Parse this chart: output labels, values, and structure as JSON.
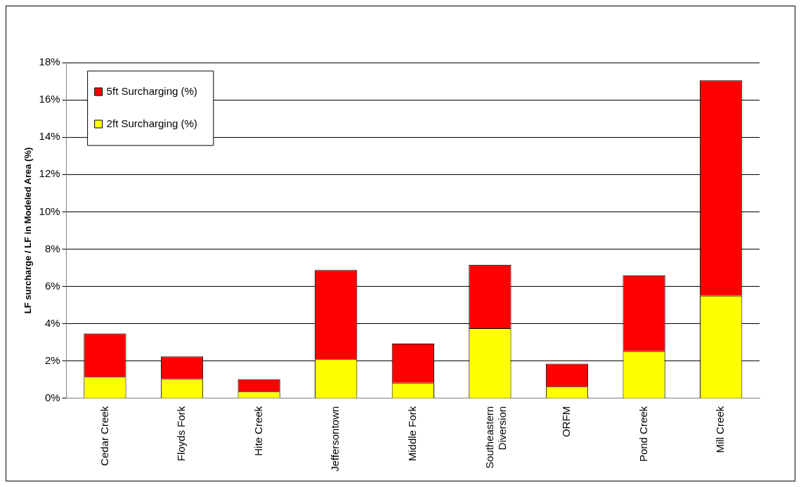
{
  "chart_data": {
    "type": "bar",
    "stacked": true,
    "ylabel": "LF surcharge / LF in Modeled Area (%)",
    "categories": [
      "Cedar Creek",
      "Floyds Fork",
      "Hite Creek",
      "Jeffersontown",
      "Middle Fork",
      "Southeastern Diversion",
      "ORFM",
      "Pond Creek",
      "Mill Creek"
    ],
    "series": [
      {
        "name": "2ft Surcharging (%)",
        "color": "#ffff00",
        "values": [
          1.15,
          1.03,
          0.36,
          2.1,
          0.83,
          3.76,
          0.63,
          2.53,
          5.5
        ]
      },
      {
        "name": "5ft Surcharging (%)",
        "color": "#ff0000",
        "values": [
          2.33,
          1.22,
          0.67,
          4.78,
          2.1,
          3.4,
          1.23,
          4.07,
          11.55
        ]
      }
    ],
    "ylim": [
      0,
      18
    ],
    "yticks": [
      {
        "value": 0,
        "label": "0%"
      },
      {
        "value": 2,
        "label": "2%"
      },
      {
        "value": 4,
        "label": "4%"
      },
      {
        "value": 6,
        "label": "6%"
      },
      {
        "value": 8,
        "label": "8%"
      },
      {
        "value": 10,
        "label": "10%"
      },
      {
        "value": 12,
        "label": "12%"
      },
      {
        "value": 14,
        "label": "14%"
      },
      {
        "value": 16,
        "label": "16%"
      },
      {
        "value": 18,
        "label": "18%"
      }
    ],
    "grid": "y",
    "legend": "top left"
  }
}
